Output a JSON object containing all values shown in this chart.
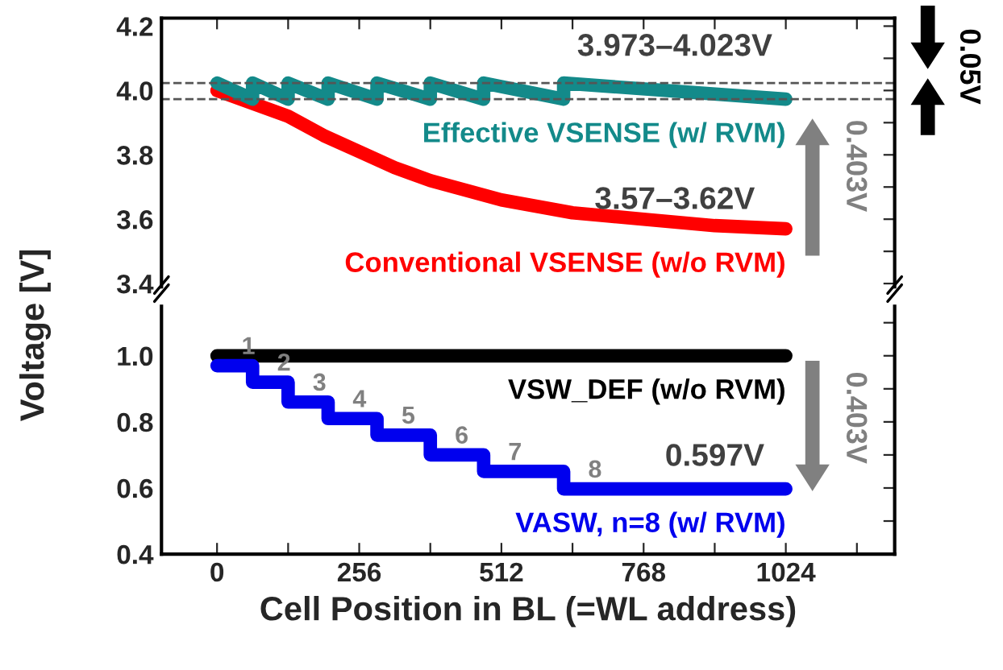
{
  "chart_data": [
    {
      "type": "line",
      "ylabel": "Voltage [V]",
      "xlim": [
        -100,
        1220
      ],
      "xticks": [
        0,
        {
          "value": 128,
          "label": null
        },
        256,
        {
          "value": 384,
          "label": null
        },
        512,
        {
          "value": 640,
          "label": null
        },
        768,
        {
          "value": 896,
          "label": null
        },
        1024,
        {
          "value": 1152,
          "label": null
        }
      ],
      "ylim": [
        3.39,
        4.225
      ],
      "yticks": [
        {
          "value": 3.4,
          "label": "3.4"
        },
        {
          "value": 3.5,
          "label": null
        },
        {
          "value": 3.6,
          "label": "3.6"
        },
        {
          "value": 3.7,
          "label": null
        },
        {
          "value": 3.8,
          "label": "3.8"
        },
        {
          "value": 3.9,
          "label": null
        },
        {
          "value": 4.0,
          "label": "4.0"
        },
        {
          "value": 4.1,
          "label": null
        },
        {
          "value": 4.2,
          "label": "4.2"
        }
      ],
      "tick_labels": "y",
      "grid": false,
      "legend": false,
      "series": [
        {
          "name": "Conventional VSENSE (w/o RVM)",
          "color": "#ff0000",
          "x": [
            0,
            64,
            128,
            192,
            256,
            320,
            384,
            448,
            512,
            576,
            640,
            704,
            768,
            832,
            896,
            960,
            1024
          ],
          "values": [
            4.0,
            3.96,
            3.92,
            3.86,
            3.81,
            3.76,
            3.72,
            3.69,
            3.66,
            3.64,
            3.62,
            3.61,
            3.6,
            3.59,
            3.58,
            3.575,
            3.57
          ]
        },
        {
          "name": "Effective VSENSE (w/ RVM)",
          "color": "#138a8a",
          "x": [
            0,
            64,
            64,
            128,
            128,
            200,
            200,
            288,
            288,
            384,
            384,
            480,
            480,
            624,
            624,
            1024
          ],
          "values": [
            4.023,
            3.973,
            4.023,
            3.973,
            4.023,
            3.973,
            4.023,
            3.973,
            4.023,
            3.973,
            4.023,
            3.973,
            4.023,
            3.973,
            4.023,
            3.973
          ]
        }
      ],
      "ref_lines": [
        {
          "axis": "y",
          "value": 4.023,
          "color": "#555555",
          "line_style": "dashed"
        },
        {
          "axis": "y",
          "value": 3.973,
          "color": "#555555",
          "line_style": "dashed"
        }
      ],
      "annotations": [
        "3.973–4.023V",
        "3.57–3.62V",
        "0.05V",
        "0.403V"
      ]
    },
    {
      "type": "line",
      "xlabel": "Cell Position in BL (=WL address)",
      "xlim": [
        -100,
        1220
      ],
      "xticks": [
        0,
        {
          "value": 128,
          "label": null
        },
        256,
        {
          "value": 384,
          "label": null
        },
        512,
        {
          "value": 640,
          "label": null
        },
        768,
        {
          "value": 896,
          "label": null
        },
        1024,
        {
          "value": 1152,
          "label": null
        }
      ],
      "ylim": [
        0.4,
        1.15
      ],
      "yticks": [
        {
          "value": 0.4,
          "label": "0.4"
        },
        {
          "value": 0.5,
          "label": null
        },
        {
          "value": 0.6,
          "label": "0.6"
        },
        {
          "value": 0.7,
          "label": null
        },
        {
          "value": 0.8,
          "label": "0.8"
        },
        {
          "value": 0.9,
          "label": null
        },
        {
          "value": 1.0,
          "label": "1.0"
        },
        {
          "value": 1.1,
          "label": null
        }
      ],
      "grid": false,
      "legend": false,
      "series": [
        {
          "name": "VSW_DEF (w/o RVM)",
          "color": "#000000",
          "x": [
            0,
            1024
          ],
          "values": [
            1.0,
            1.0
          ]
        },
        {
          "name": "VASW, n=8 (w/ RVM)",
          "color": "#0000ee",
          "type": "step",
          "x": [
            0,
            64,
            128,
            200,
            288,
            384,
            480,
            624,
            1024
          ],
          "values": [
            0.97,
            0.92,
            0.86,
            0.81,
            0.76,
            0.7,
            0.65,
            0.597,
            0.597
          ]
        }
      ],
      "annotations": [
        {
          "text": "1",
          "x": 0,
          "y": 0.97
        },
        {
          "text": "2",
          "x": 64,
          "y": 0.92
        },
        {
          "text": "3",
          "x": 128,
          "y": 0.86
        },
        {
          "text": "4",
          "x": 200,
          "y": 0.81
        },
        {
          "text": "5",
          "x": 288,
          "y": 0.76
        },
        {
          "text": "6",
          "x": 384,
          "y": 0.7
        },
        {
          "text": "7",
          "x": 480,
          "y": 0.65
        },
        {
          "text": "8",
          "x": 624,
          "y": 0.597
        },
        {
          "text": "0.597V",
          "x": 896,
          "y": 0.597
        },
        "0.403V"
      ]
    }
  ]
}
